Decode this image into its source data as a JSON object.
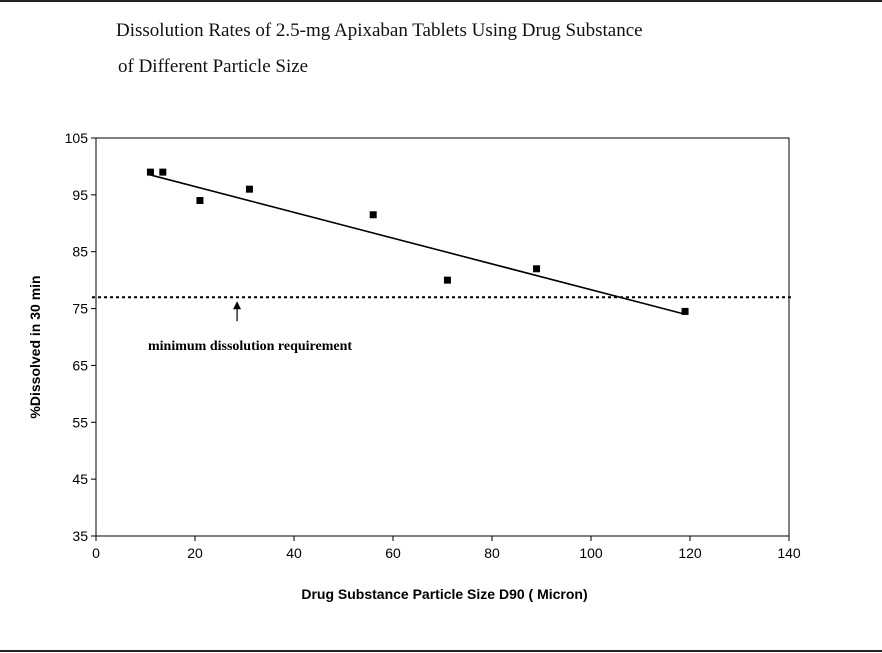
{
  "title_line1": "Dissolution Rates of 2.5-mg Apixaban Tablets Using Drug Substance",
  "title_line2": "of Different Particle Size",
  "chart_data": {
    "type": "scatter",
    "xlabel": "Drug Substance Particle Size D90 ( Micron)",
    "ylabel": "%Dissolved in 30 min",
    "xlim": [
      0,
      140
    ],
    "ylim": [
      35,
      105
    ],
    "x_ticks": [
      0,
      20,
      40,
      60,
      80,
      100,
      120,
      140
    ],
    "y_ticks": [
      35,
      45,
      55,
      65,
      75,
      85,
      95,
      105
    ],
    "points": [
      {
        "x": 11,
        "y": 99
      },
      {
        "x": 13.5,
        "y": 99
      },
      {
        "x": 21,
        "y": 94
      },
      {
        "x": 31,
        "y": 96
      },
      {
        "x": 56,
        "y": 91.5
      },
      {
        "x": 71,
        "y": 80
      },
      {
        "x": 89,
        "y": 82
      },
      {
        "x": 119,
        "y": 74.5
      }
    ],
    "trendline": {
      "x": [
        11,
        119
      ],
      "y": [
        98.5,
        74
      ]
    },
    "reference_line": {
      "y": 77,
      "style": "dotted"
    },
    "annotation": {
      "text": "minimum dissolution requirement",
      "arrow_x": 28.5
    },
    "grid": false,
    "colors": {
      "marker": "#000000",
      "line": "#000000"
    }
  }
}
